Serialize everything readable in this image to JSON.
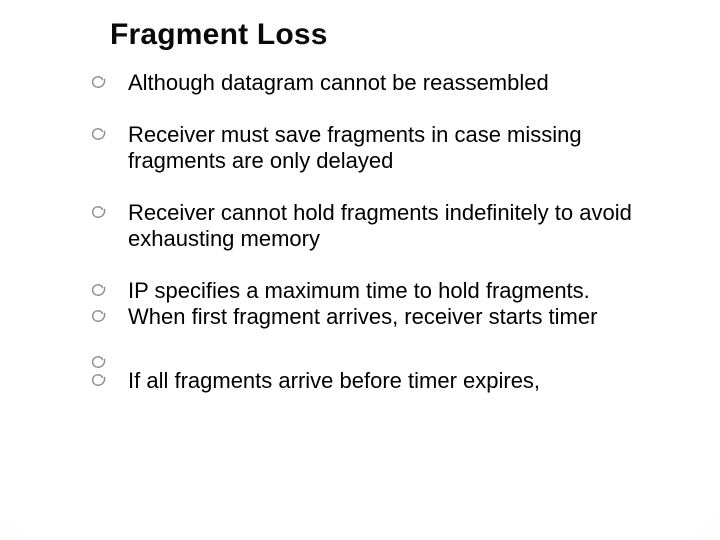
{
  "title": "Fragment Loss",
  "title_fontsize": 30,
  "body_fontsize": 22,
  "text_color": "#000000",
  "bullet_stroke": "#8a8a8a",
  "background_center": "#ffffff",
  "background_edge": "#e8e6e0",
  "bullets": [
    {
      "text": "Although datagram cannot be reassembled",
      "empty": false,
      "tight": false
    },
    {
      "text": "Receiver must save fragments in case missing fragments are only delayed",
      "empty": false,
      "tight": false
    },
    {
      "text": "Receiver cannot hold fragments indefinitely to avoid exhausting memory",
      "empty": false,
      "tight": false
    },
    {
      "text": "IP specifies a maximum time to hold fragments.",
      "empty": false,
      "tight": true
    },
    {
      "text": "When first fragment arrives, receiver starts timer",
      "empty": false,
      "tight": false
    },
    {
      "text": "",
      "empty": true,
      "tight": true
    },
    {
      "text": "If all fragments arrive before timer expires,",
      "empty": false,
      "tight": false
    }
  ]
}
